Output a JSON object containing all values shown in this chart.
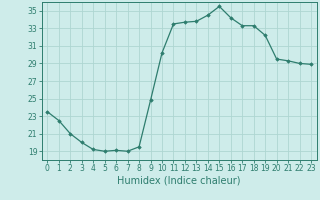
{
  "x": [
    0,
    1,
    2,
    3,
    4,
    5,
    6,
    7,
    8,
    9,
    10,
    11,
    12,
    13,
    14,
    15,
    16,
    17,
    18,
    19,
    20,
    21,
    22,
    23
  ],
  "y": [
    23.5,
    22.5,
    21.0,
    20.0,
    19.2,
    19.0,
    19.1,
    19.0,
    19.5,
    24.8,
    30.2,
    33.5,
    33.7,
    33.8,
    34.5,
    35.5,
    34.2,
    33.3,
    33.3,
    32.2,
    29.5,
    29.3,
    29.0,
    28.9
  ],
  "line_color": "#2e7d6e",
  "marker": "D",
  "marker_size": 1.8,
  "bg_color": "#ceecea",
  "grid_color": "#aed6d2",
  "xlabel": "Humidex (Indice chaleur)",
  "xlim": [
    -0.5,
    23.5
  ],
  "ylim": [
    18,
    36
  ],
  "yticks": [
    19,
    21,
    23,
    25,
    27,
    29,
    31,
    33,
    35
  ],
  "xticks": [
    0,
    1,
    2,
    3,
    4,
    5,
    6,
    7,
    8,
    9,
    10,
    11,
    12,
    13,
    14,
    15,
    16,
    17,
    18,
    19,
    20,
    21,
    22,
    23
  ],
  "tick_fontsize": 5.5,
  "label_fontsize": 7.0
}
